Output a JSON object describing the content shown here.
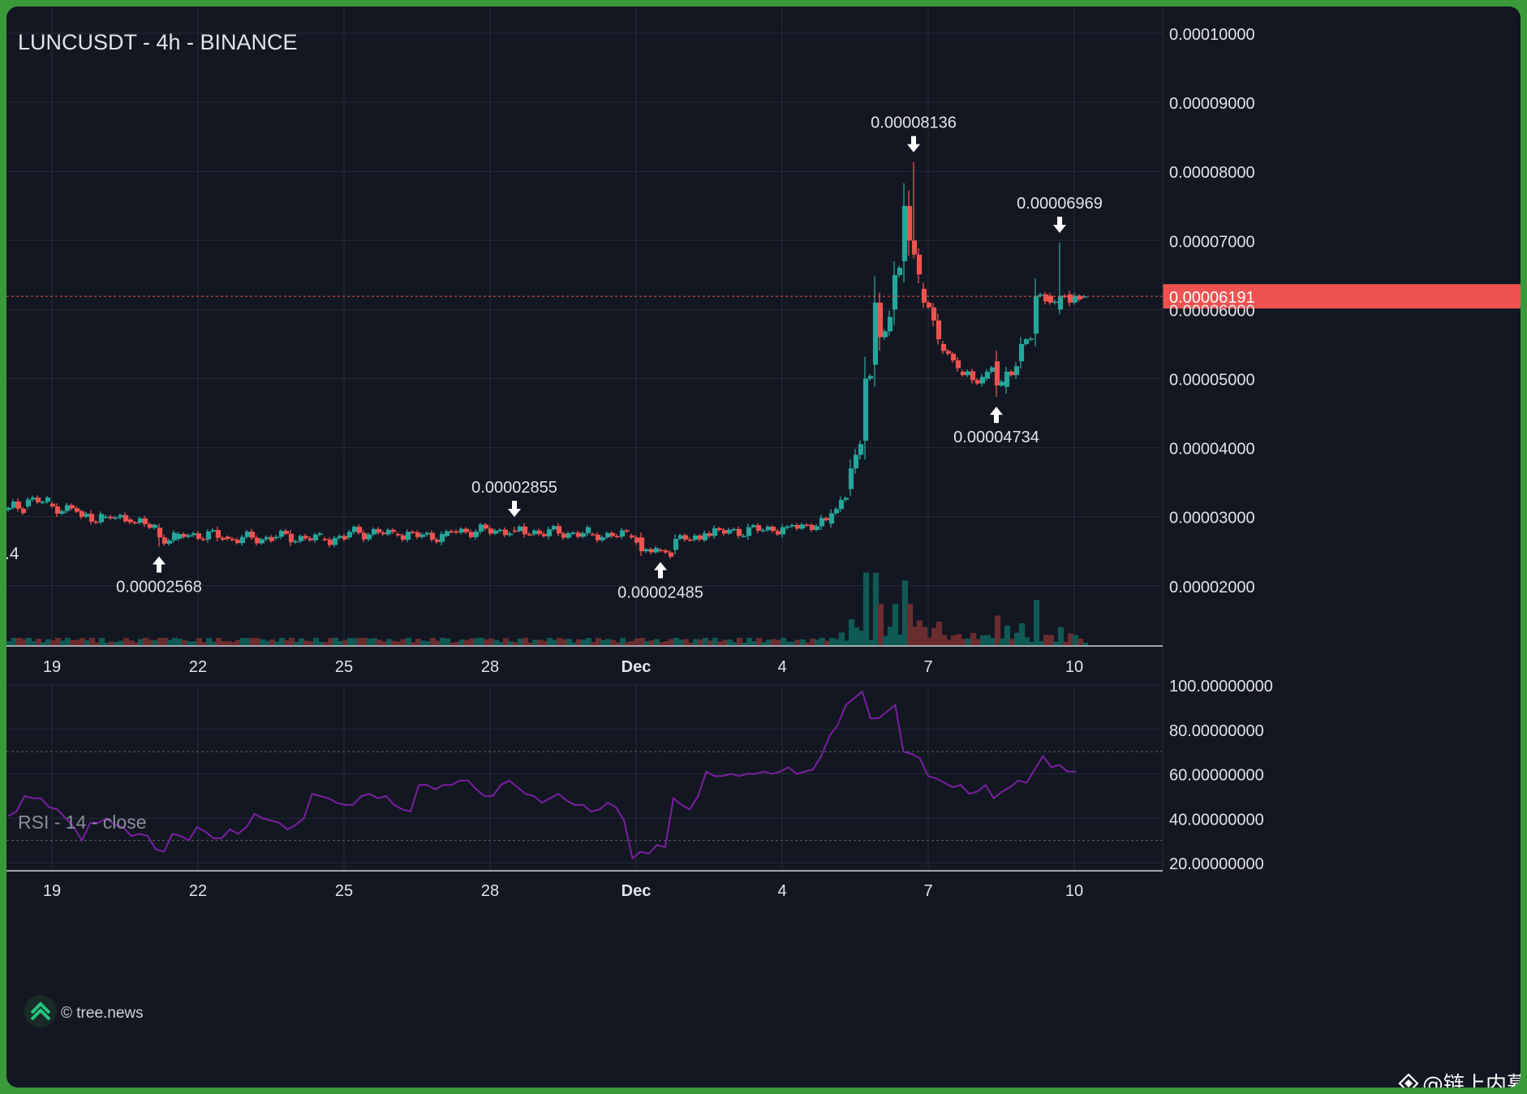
{
  "title": "LUNCUSDT - 4h - BINANCE",
  "colors": {
    "background": "#131722",
    "grid": "#262b38",
    "up": "#26a69a",
    "down": "#ef5350",
    "up_volume": "#0f5a55",
    "down_volume": "#6b2c2f",
    "rsi_line": "#7b1fa2",
    "price_line": "#ef5350",
    "text": "#e0e3eb",
    "muted": "#8a8e99"
  },
  "x_ticks": [
    "19",
    "22",
    "25",
    "28",
    "Dec",
    "4",
    "7",
    "10"
  ],
  "y_ticks": [
    "0.00010000",
    "0.00009000",
    "0.00008000",
    "0.00007000",
    "0.00006000",
    "0.00005000",
    "0.00004000",
    "0.00003000",
    "0.00002000"
  ],
  "left_edge_label": ".4",
  "current_price": {
    "value": 6.191e-05,
    "label": "0.00006191"
  },
  "annotations": [
    {
      "label": "0.00002568",
      "value": 2.568e-05,
      "direction": "up",
      "bar": 31
    },
    {
      "label": "0.00002855",
      "value": 2.855e-05,
      "direction": "down",
      "bar": 104
    },
    {
      "label": "0.00002485",
      "value": 2.485e-05,
      "direction": "up",
      "bar": 134
    },
    {
      "label": "0.00008136",
      "value": 8.136e-05,
      "direction": "down",
      "bar": 186
    },
    {
      "label": "0.00004734",
      "value": 4.734e-05,
      "direction": "up",
      "bar": 203
    },
    {
      "label": "0.00006969",
      "value": 6.969e-05,
      "direction": "down",
      "bar": 216
    }
  ],
  "rsi": {
    "title": "RSI - 14 - close",
    "y_ticks": [
      "100.00000000",
      "80.00000000",
      "60.00000000",
      "40.00000000",
      "20.00000000"
    ],
    "upper_band": 70,
    "lower_band": 30
  },
  "watermark": {
    "text": "© tree.news",
    "icon": "tree-news-chevrons-icon"
  },
  "footer_credit": {
    "text": "@链上内幕",
    "icon": "diamond-logo-icon"
  },
  "chart_data": {
    "type": "candlestick",
    "symbol": "LUNCUSDT",
    "interval": "4h",
    "exchange": "BINANCE",
    "ylim": [
      1.35e-05,
      0.000104
    ],
    "candles_anchor": [
      {
        "bar": 0,
        "open": 3.1e-05,
        "close": 3.13e-05
      },
      {
        "bar": 4,
        "open": 3.15e-05,
        "close": 3.25e-05
      },
      {
        "bar": 9,
        "open": 3.19e-05,
        "close": 3.15e-05
      },
      {
        "bar": 15,
        "open": 3.08e-05,
        "close": 3e-05
      },
      {
        "bar": 20,
        "open": 3e-05,
        "close": 3e-05
      },
      {
        "bar": 25,
        "open": 2.96e-05,
        "close": 2.92e-05
      },
      {
        "bar": 31,
        "open": 2.84e-05,
        "close": 2.7e-05
      },
      {
        "bar": 35,
        "open": 2.68e-05,
        "close": 2.75e-05
      },
      {
        "bar": 45,
        "open": 2.71e-05,
        "close": 2.68e-05
      },
      {
        "bar": 55,
        "open": 2.69e-05,
        "close": 2.71e-05
      },
      {
        "bar": 65,
        "open": 2.68e-05,
        "close": 2.67e-05
      },
      {
        "bar": 70,
        "open": 2.7e-05,
        "close": 2.78e-05
      },
      {
        "bar": 80,
        "open": 2.75e-05,
        "close": 2.73e-05
      },
      {
        "bar": 90,
        "open": 2.72e-05,
        "close": 2.79e-05
      },
      {
        "bar": 104,
        "open": 2.8e-05,
        "close": 2.79e-05
      },
      {
        "bar": 120,
        "open": 2.75e-05,
        "close": 2.74e-05
      },
      {
        "bar": 128,
        "open": 2.73e-05,
        "close": 2.7e-05
      },
      {
        "bar": 130,
        "open": 2.7e-05,
        "close": 2.5e-05
      },
      {
        "bar": 134,
        "open": 2.52e-05,
        "close": 2.51e-05
      },
      {
        "bar": 137,
        "open": 2.52e-05,
        "close": 2.68e-05
      },
      {
        "bar": 143,
        "open": 2.66e-05,
        "close": 2.76e-05
      },
      {
        "bar": 160,
        "open": 2.84e-05,
        "close": 2.86e-05
      },
      {
        "bar": 169,
        "open": 2.9e-05,
        "close": 3.05e-05
      },
      {
        "bar": 173,
        "open": 3.4e-05,
        "close": 3.7e-05
      },
      {
        "bar": 176,
        "open": 4.1e-05,
        "close": 5e-05
      },
      {
        "bar": 178,
        "open": 5.2e-05,
        "close": 6.1e-05
      },
      {
        "bar": 179,
        "open": 6.1e-05,
        "close": 5.6e-05
      },
      {
        "bar": 182,
        "open": 6e-05,
        "close": 6.5e-05
      },
      {
        "bar": 184,
        "open": 6.7e-05,
        "close": 7.5e-05
      },
      {
        "bar": 185,
        "open": 7.5e-05,
        "close": 7e-05
      },
      {
        "bar": 188,
        "open": 6.3e-05,
        "close": 6.1e-05
      },
      {
        "bar": 192,
        "open": 5.5e-05,
        "close": 5.4e-05
      },
      {
        "bar": 196,
        "open": 5.1e-05,
        "close": 5.05e-05
      },
      {
        "bar": 201,
        "open": 5e-05,
        "close": 5.1e-05
      },
      {
        "bar": 203,
        "open": 5.25e-05,
        "close": 4.9e-05
      },
      {
        "bar": 205,
        "open": 4.88e-05,
        "close": 5.1e-05
      },
      {
        "bar": 208,
        "open": 5.25e-05,
        "close": 5.5e-05
      },
      {
        "bar": 211,
        "open": 5.65e-05,
        "close": 6.2e-05
      },
      {
        "bar": 214,
        "open": 6.2e-05,
        "close": 6.1e-05
      },
      {
        "bar": 216,
        "open": 6e-05,
        "close": 6.2e-05
      },
      {
        "bar": 218,
        "open": 6.22e-05,
        "close": 6.1e-05
      },
      {
        "bar": 219,
        "open": 6.1e-05,
        "close": 6.2e-05
      },
      {
        "bar": 221,
        "open": 6.19e-05,
        "close": 6.19e-05
      }
    ],
    "rsi_values": [
      41,
      43,
      50,
      49,
      49,
      45,
      44,
      40,
      36,
      30,
      38,
      38,
      40,
      37,
      36,
      32,
      33,
      32,
      26,
      25,
      33,
      32,
      30,
      36,
      34,
      31,
      31,
      35,
      33,
      36,
      42,
      40,
      39,
      38,
      35,
      37,
      40,
      51,
      50,
      49,
      47,
      46,
      46,
      50,
      51,
      49,
      50,
      46,
      44,
      43,
      55,
      55,
      53,
      55,
      55,
      57,
      57,
      53,
      50,
      50,
      55,
      57,
      54,
      51,
      50,
      47,
      49,
      51,
      48,
      46,
      46,
      43,
      44,
      47,
      45,
      39,
      22,
      25,
      24,
      28,
      27,
      49,
      46,
      44,
      50,
      61,
      59,
      59,
      60,
      59,
      60,
      60,
      61,
      60,
      61,
      63,
      60,
      61,
      62,
      68,
      77,
      82,
      91,
      94,
      97,
      85,
      85,
      88,
      91,
      70,
      69,
      67,
      59,
      58,
      56,
      54,
      55,
      51,
      52,
      55,
      49,
      52,
      54,
      57,
      56,
      62,
      68,
      63,
      64,
      61,
      61
    ]
  }
}
